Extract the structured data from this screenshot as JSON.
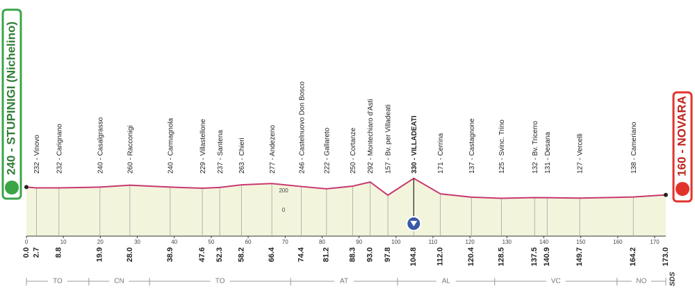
{
  "chart_data": {
    "type": "area",
    "x": [
      0,
      2.7,
      8.8,
      19.9,
      28.0,
      38.9,
      47.6,
      52.3,
      58.2,
      66.4,
      74.4,
      81.2,
      88.3,
      93.0,
      97.8,
      104.8,
      112.0,
      120.4,
      128.5,
      137.5,
      140.9,
      149.7,
      164.2,
      173.0
    ],
    "x_labels": [
      "0.0",
      "2.7",
      "8.8",
      "19.9",
      "28.0",
      "38.9",
      "47.6",
      "52.3",
      "58.2",
      "66.4",
      "74.4",
      "81.2",
      "88.3",
      "93.0",
      "97.8",
      "104.8",
      "112.0",
      "120.4",
      "128.5",
      "137.5",
      "140.9",
      "149.7",
      "164.2",
      "173.0"
    ],
    "values": [
      240,
      232,
      232,
      240,
      260,
      240,
      229,
      237,
      263,
      277,
      246,
      222,
      250,
      292,
      157,
      330,
      171,
      137,
      125,
      132,
      131,
      127,
      138,
      160
    ],
    "value_labels": [
      "240 - STUPINIGI (Nichelino)",
      "232 - Vinovo",
      "232 - Carignano",
      "240 - Casalgrasso",
      "260 - Racconigi",
      "240 - Carmagnola",
      "229 - Villastellone",
      "237 - Santena",
      "263 - Chieri",
      "277 - Andezeno",
      "246 - Castelnuovo Don Bosco",
      "222 - Gallareto",
      "250 - Cortanze",
      "292 - Montechiaro d'Asti",
      "157 - Bv. per Villadeati",
      "330 - VILLADEATI",
      "171 - Cerrina",
      "137 - Castagnone",
      "125 - Svinc. Trino",
      "132 - Bv. Tricerro",
      "131 - Desana",
      "127 - Vercelli",
      "138 - Cameriano",
      "160 - NOVARA"
    ],
    "kom": [
      104.8
    ],
    "color": "#c8376e",
    "xlim": [
      0,
      173
    ],
    "xticks": [
      0,
      10,
      20,
      30,
      40,
      50,
      60,
      70,
      80,
      90,
      100,
      110,
      120,
      130,
      140,
      150,
      160,
      170
    ],
    "ylim": [
      0,
      1000
    ],
    "yticks": [
      0,
      200
    ],
    "regions": {
      "labels": [
        "TO",
        "CN",
        "TO",
        "AT",
        "AL",
        "VC",
        "NO"
      ],
      "bounds": [
        0,
        16.9,
        33.3,
        71.5,
        100.4,
        126.7,
        159.8,
        173
      ]
    },
    "logo": "SDS"
  }
}
